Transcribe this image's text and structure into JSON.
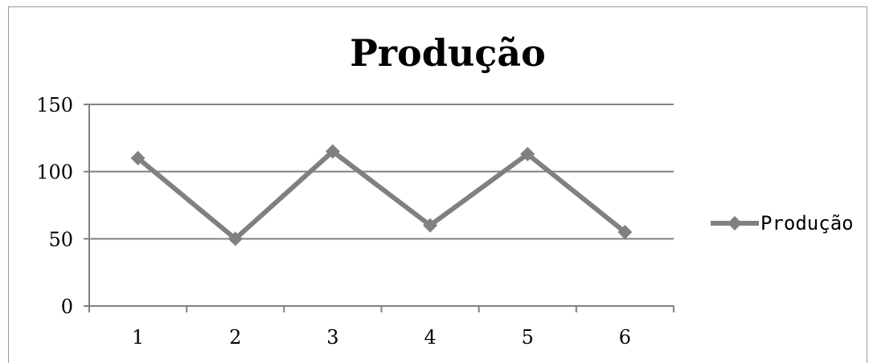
{
  "chart_data": {
    "type": "line",
    "title": "Produção",
    "xlabel": "",
    "ylabel": "",
    "categories": [
      "1",
      "2",
      "3",
      "4",
      "5",
      "6"
    ],
    "series": [
      {
        "name": "Produção",
        "values": [
          110,
          50,
          115,
          60,
          113,
          55
        ]
      }
    ],
    "ylim": [
      0,
      150
    ],
    "yticks": [
      "0",
      "50",
      "100",
      "150"
    ],
    "grid": true,
    "legend_position": "right",
    "colors": {
      "series": "#808080",
      "grid": "#808080",
      "axis": "#808080"
    }
  }
}
